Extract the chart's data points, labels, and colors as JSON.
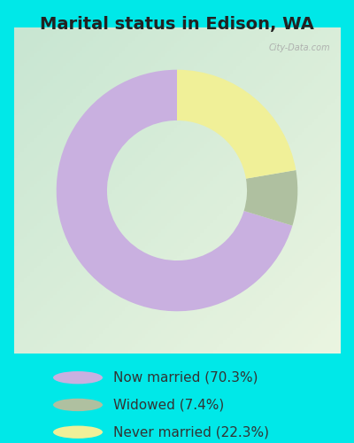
{
  "title": "Marital status in Edison, WA",
  "slices": [
    70.3,
    7.4,
    22.3
  ],
  "colors": [
    "#c9b0e0",
    "#afc0a0",
    "#f0f098"
  ],
  "labels": [
    "Now married (70.3%)",
    "Widowed (7.4%)",
    "Never married (22.3%)"
  ],
  "legend_colors": [
    "#c9b0e0",
    "#afc0a0",
    "#f0f098"
  ],
  "bg_cyan": "#00e8e8",
  "bg_chart_tl": "#c8e8d8",
  "bg_chart_br": "#e8f0e0",
  "watermark": "City-Data.com",
  "title_fontsize": 14,
  "legend_fontsize": 11,
  "startangle": 90,
  "donut_width": 0.42
}
